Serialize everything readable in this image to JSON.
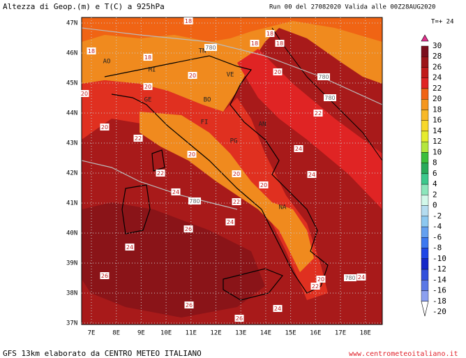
{
  "header": {
    "title": "Altezza di Geop.(m) e T(C) a 925hPa",
    "run": "Run 00 del 27082020  Valida alle 00Z28AUG2020",
    "step": "T=+ 24"
  },
  "map": {
    "lat_labels": [
      "47N",
      "46N",
      "45N",
      "44N",
      "43N",
      "42N",
      "41N",
      "40N",
      "39N",
      "38N",
      "37N"
    ],
    "lon_labels": [
      "7E",
      "8E",
      "9E",
      "10E",
      "11E",
      "12E",
      "13E",
      "14E",
      "15E",
      "16E",
      "17E",
      "18E"
    ],
    "cities": [
      "AO",
      "MI",
      "TN",
      "VE",
      "GE",
      "BO",
      "FI",
      "PG",
      "AN",
      "NA"
    ],
    "contour_labels": [
      "18",
      "18",
      "18",
      "780",
      "18",
      "18",
      "18",
      "20",
      "780",
      "20",
      "20",
      "780",
      "20",
      "22",
      "20",
      "22",
      "24",
      "20",
      "22",
      "24",
      "20",
      "20",
      "24",
      "780",
      "22",
      "24",
      "26",
      "24",
      "26",
      "780",
      "24",
      "20",
      "22",
      "26",
      "24",
      "26"
    ]
  },
  "legend": {
    "items": [
      {
        "label": "30",
        "color": "#e0308c"
      },
      {
        "label": "28",
        "color": "#7a0e1c"
      },
      {
        "label": "26",
        "color": "#9c1418"
      },
      {
        "label": "24",
        "color": "#c01a1a"
      },
      {
        "label": "22",
        "color": "#e02424"
      },
      {
        "label": "20",
        "color": "#f06414"
      },
      {
        "label": "18",
        "color": "#f5961e"
      },
      {
        "label": "16",
        "color": "#f8b928"
      },
      {
        "label": "14",
        "color": "#f8d82a"
      },
      {
        "label": "12",
        "color": "#e6ec2e"
      },
      {
        "label": "10",
        "color": "#b4e63c"
      },
      {
        "label": "8",
        "color": "#3cbe3c"
      },
      {
        "label": "6",
        "color": "#28aa5a"
      },
      {
        "label": "4",
        "color": "#3cc88c"
      },
      {
        "label": "2",
        "color": "#8ce6bc"
      },
      {
        "label": "0",
        "color": "#d2f8ea"
      },
      {
        "label": "-2",
        "color": "#b4dcf0"
      },
      {
        "label": "-4",
        "color": "#8cc8f0"
      },
      {
        "label": "-6",
        "color": "#64a0f0"
      },
      {
        "label": "-8",
        "color": "#3c78f0"
      },
      {
        "label": "-10",
        "color": "#1e46e6"
      },
      {
        "label": "-12",
        "color": "#1428c8"
      },
      {
        "label": "-14",
        "color": "#3250dc"
      },
      {
        "label": "-16",
        "color": "#5a78e6"
      },
      {
        "label": "-18",
        "color": "#8ca0f0"
      },
      {
        "label": "-20",
        "color": "#b4bef5"
      }
    ]
  },
  "footer": {
    "left": "GFS 13km elaborato da CENTRO METEO ITALIANO",
    "right": "www.centrometeoitaliano.it"
  }
}
